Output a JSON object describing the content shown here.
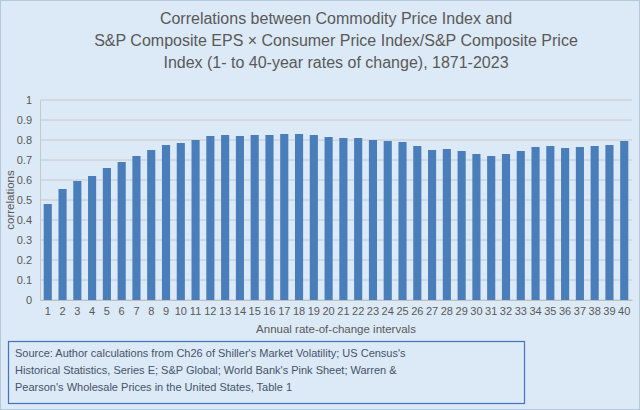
{
  "chart_data": {
    "type": "bar",
    "title": [
      "Correlations between Commodity Price Index and",
      "S&P Composite EPS × Consumer Price Index/S&P Composite Price",
      "Index (1- to 40-year rates of change), 1871-2023"
    ],
    "x_label": "Annual rate-of-change intervals",
    "y_label": "correlations",
    "annotations": [
      "Source: Author calculations from Ch26 of Shiller's Market Volatility; US Census's",
      "Historical Statistics, Series E; S&P Global; World Bank's Pink Sheet; Warren &",
      "Pearson's Wholesale Prices in the United States, Table 1"
    ],
    "categories": [
      "1",
      "2",
      "3",
      "4",
      "5",
      "6",
      "7",
      "8",
      "9",
      "10",
      "11",
      "12",
      "13",
      "14",
      "15",
      "16",
      "17",
      "18",
      "19",
      "20",
      "21",
      "22",
      "23",
      "24",
      "25",
      "26",
      "27",
      "28",
      "29",
      "30",
      "31",
      "32",
      "33",
      "34",
      "35",
      "36",
      "37",
      "38",
      "39",
      "40"
    ],
    "values": [
      0.48,
      0.555,
      0.595,
      0.62,
      0.66,
      0.69,
      0.72,
      0.75,
      0.775,
      0.785,
      0.8,
      0.82,
      0.825,
      0.82,
      0.825,
      0.825,
      0.83,
      0.83,
      0.825,
      0.815,
      0.81,
      0.81,
      0.8,
      0.795,
      0.79,
      0.77,
      0.75,
      0.755,
      0.745,
      0.73,
      0.72,
      0.73,
      0.745,
      0.765,
      0.77,
      0.76,
      0.765,
      0.77,
      0.775,
      0.795
    ],
    "color": "#4a7ebb",
    "ylim": [
      0,
      1
    ],
    "yticks": [
      0,
      0.1,
      0.2,
      0.3,
      0.4,
      0.5,
      0.6,
      0.7,
      0.8,
      0.9,
      1
    ],
    "grid": true
  }
}
